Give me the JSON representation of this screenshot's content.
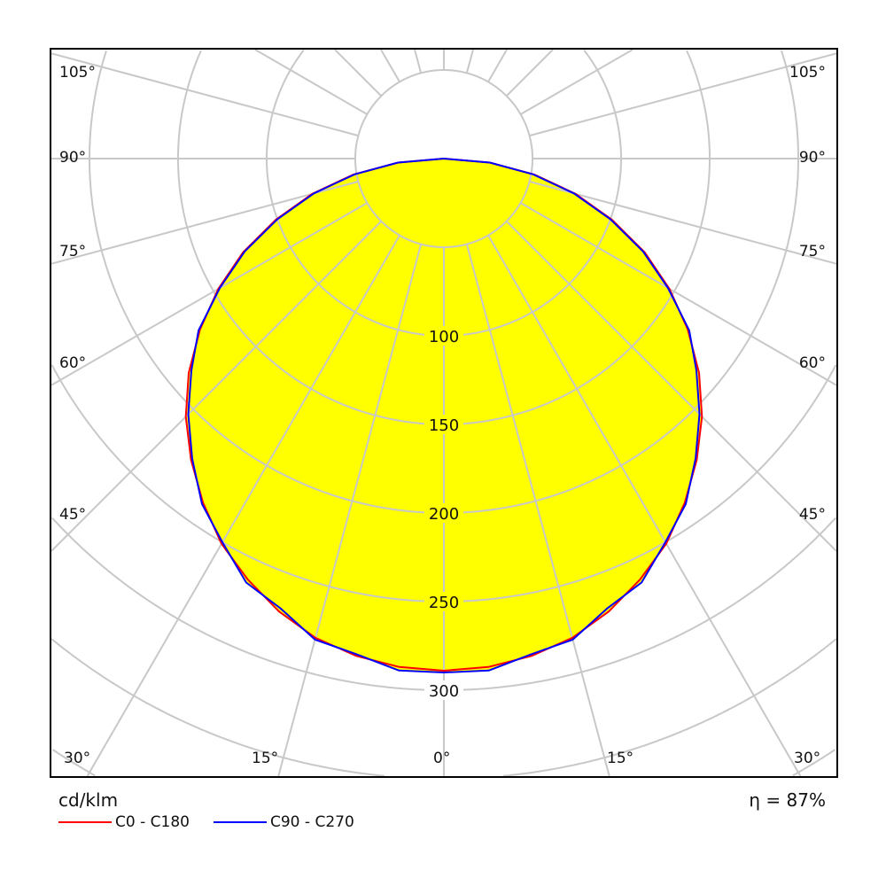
{
  "chart_data": {
    "type": "polar",
    "unit_label": "cd/klm",
    "efficiency_label": "η = 87%",
    "radial_ticks": [
      100,
      150,
      200,
      250,
      300
    ],
    "radial_range": [
      0,
      400
    ],
    "radial_step": 50,
    "angle_labels": {
      "left": [
        "105°",
        "90°",
        "75°",
        "60°",
        "45°"
      ],
      "bottom": [
        "30°",
        "15°",
        "0°",
        "15°",
        "30°"
      ],
      "right": [
        "105°",
        "90°",
        "75°",
        "60°",
        "45°"
      ]
    },
    "angle_step_deg": 15,
    "grid": true,
    "fill_color": "#ffff00",
    "grid_color": "#c8c8c8",
    "gamma_deg": [
      0,
      5,
      10,
      15,
      20,
      25,
      30,
      35,
      40,
      45,
      50,
      55,
      60,
      65,
      70,
      75,
      80,
      85,
      90
    ],
    "series": [
      {
        "name": "C0 - C180",
        "color": "#ff0000",
        "values": [
          289,
          288,
          285,
          280,
          272,
          262,
          251,
          237,
          222,
          206,
          188,
          168,
          147,
          125,
          101,
          77,
          52,
          26,
          0
        ]
      },
      {
        "name": "C90 - C270",
        "color": "#0000ff",
        "values": [
          290,
          290,
          284,
          281,
          270,
          264,
          250,
          238,
          221,
          204,
          186,
          169,
          146,
          124,
          100,
          76,
          51,
          26,
          0
        ]
      }
    ]
  }
}
